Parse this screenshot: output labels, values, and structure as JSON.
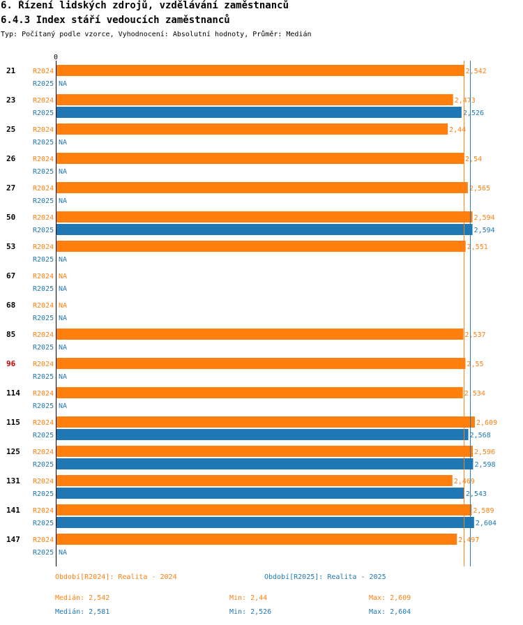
{
  "header": {
    "title": "6. Řízení lidských zdrojů, vzdělávání zaměstnanců",
    "subtitle": "6.4.3 Index stáří vedoucích zaměstnanců",
    "type_line": "Typ: Počítaný podle vzorce, Vyhodnocení: Absolutní hodnoty, Průměr: Medián"
  },
  "colors": {
    "r2024": "#ff7f0e",
    "r2025": "#1f77b4",
    "highlight": "#cc0000"
  },
  "chart_data": {
    "type": "bar",
    "orientation": "horizontal",
    "axis_zero_label": "0",
    "na_label": "NA",
    "series_names": [
      "R2024",
      "R2025"
    ],
    "categories": [
      "21",
      "23",
      "25",
      "26",
      "27",
      "50",
      "53",
      "67",
      "68",
      "85",
      "96",
      "114",
      "115",
      "125",
      "131",
      "141",
      "147"
    ],
    "highlight_category": "96",
    "series": [
      {
        "name": "R2024",
        "values": [
          2.542,
          2.473,
          2.44,
          2.54,
          2.565,
          2.594,
          2.551,
          null,
          null,
          2.537,
          2.55,
          2.534,
          2.609,
          2.596,
          2.469,
          2.589,
          2.497
        ],
        "labels": [
          "2,542",
          "2,473",
          "2,44",
          "2,54",
          "2,565",
          "2,594",
          "2,551",
          null,
          null,
          "2,537",
          "2,55",
          "2,534",
          "2,609",
          "2,596",
          "2,469",
          "2,589",
          "2,497"
        ]
      },
      {
        "name": "R2025",
        "values": [
          null,
          2.526,
          null,
          null,
          null,
          2.594,
          null,
          null,
          null,
          null,
          null,
          null,
          2.568,
          2.598,
          2.543,
          2.604,
          null
        ],
        "labels": [
          null,
          "2,526",
          null,
          null,
          null,
          "2,594",
          null,
          null,
          null,
          null,
          null,
          null,
          "2,568",
          "2,598",
          "2,543",
          "2,604",
          null
        ]
      }
    ],
    "median_lines": {
      "R2024": 2.542,
      "R2025": 2.581
    },
    "xlim": [
      0,
      2.609
    ]
  },
  "footer": {
    "legend_2024": "Období[R2024]: Realita - 2024",
    "legend_2025": "Období[R2025]: Realita - 2025",
    "median_2024": "Medián: 2,542",
    "min_2024": "Min: 2,44",
    "max_2024": "Max: 2,609",
    "median_2025": "Medián: 2,581",
    "min_2025": "Min: 2,526",
    "max_2025": "Max: 2,604"
  }
}
